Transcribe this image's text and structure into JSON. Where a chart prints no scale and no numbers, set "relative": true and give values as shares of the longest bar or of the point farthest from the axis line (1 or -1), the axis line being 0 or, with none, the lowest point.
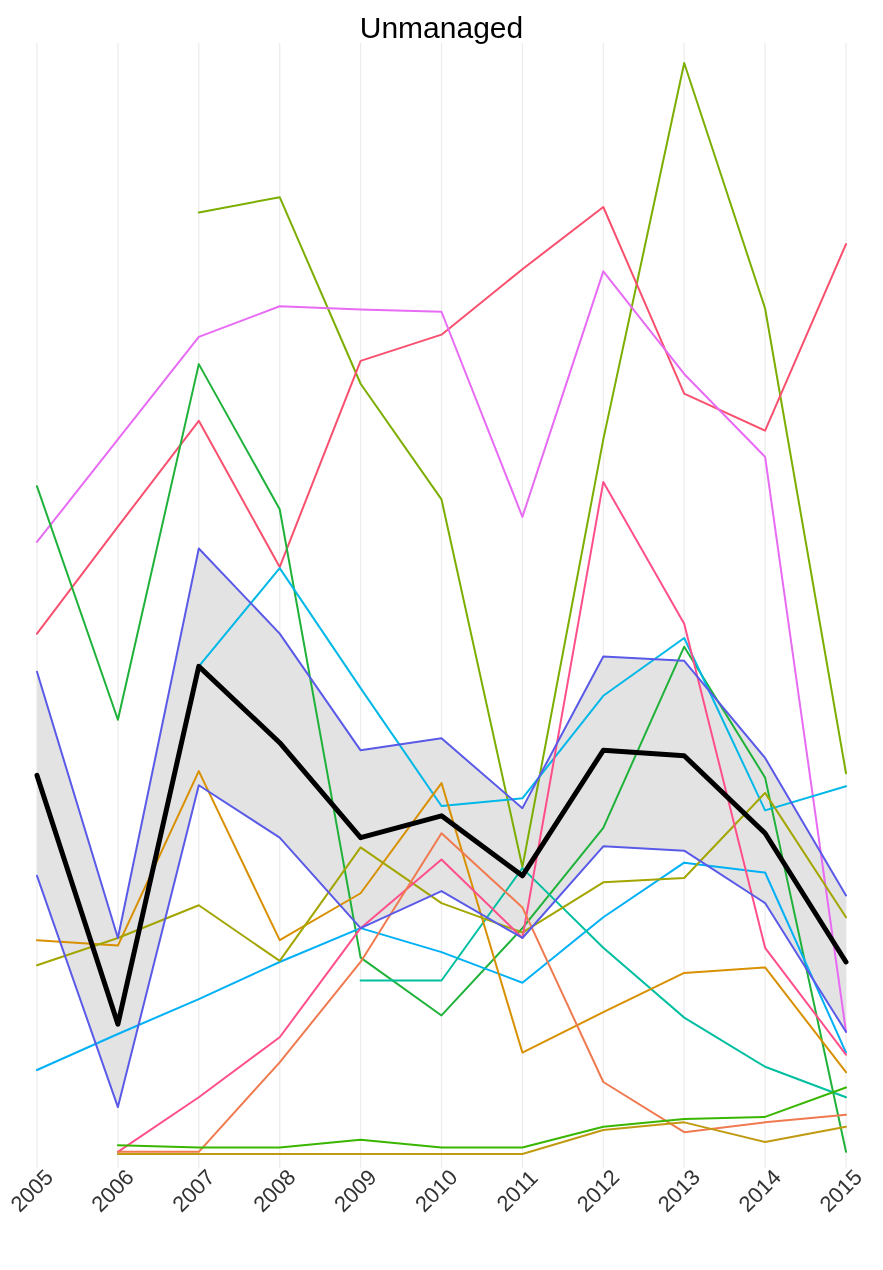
{
  "chart_data": {
    "type": "line",
    "title": "Unmanaged",
    "relative": true,
    "grid": "x",
    "categories": [
      "2005",
      "2006",
      "2007",
      "2008",
      "2009",
      "2010",
      "2011",
      "2012",
      "2013",
      "2014",
      "2015"
    ],
    "series": [
      {
        "color": "#7cae00",
        "values": [
          null,
          null,
          0.863,
          0.877,
          0.706,
          0.6,
          0.263,
          0.655,
          1.0,
          0.775,
          0.349
        ]
      },
      {
        "color": "#f8506e",
        "values": [
          0.477,
          0.575,
          0.672,
          0.538,
          0.727,
          0.751,
          0.811,
          0.868,
          0.697,
          0.663,
          0.834
        ]
      },
      {
        "color": "#e76bf3",
        "values": [
          0.561,
          0.655,
          0.749,
          0.777,
          0.774,
          0.772,
          0.584,
          0.809,
          0.715,
          0.639,
          0.112
        ]
      },
      {
        "color": "#1fb23a",
        "values": [
          0.612,
          0.398,
          0.724,
          0.591,
          0.18,
          0.127,
          0.207,
          0.299,
          0.465,
          0.345,
          0.002
        ]
      },
      {
        "color": "#00b0f6",
        "values": [
          0.077,
          0.11,
          0.142,
          0.176,
          0.207,
          0.185,
          0.157,
          0.217,
          0.267,
          0.258,
          0.093
        ]
      },
      {
        "color": "#00b8e7",
        "values": [
          null,
          null,
          0.447,
          0.537,
          0.427,
          0.319,
          0.326,
          0.42,
          0.473,
          0.315,
          0.337
        ]
      },
      {
        "color": "#00bfa0",
        "values": [
          null,
          null,
          null,
          null,
          0.159,
          0.159,
          0.262,
          0.189,
          0.125,
          0.08,
          0.052
        ]
      },
      {
        "color": "#d89000",
        "values": [
          0.196,
          0.191,
          0.351,
          0.196,
          0.239,
          0.34,
          0.093,
          0.13,
          0.166,
          0.171,
          0.075
        ]
      },
      {
        "color": "#a3a500",
        "values": [
          0.173,
          0.198,
          0.228,
          0.177,
          0.281,
          0.23,
          0.203,
          0.249,
          0.253,
          0.331,
          0.217
        ]
      },
      {
        "color": "#ff4f8b",
        "values": [
          null,
          0.002,
          0.052,
          0.107,
          0.207,
          0.27,
          0.198,
          0.616,
          0.486,
          0.189,
          0.091
        ]
      },
      {
        "color": "#f07a50",
        "values": [
          null,
          0.002,
          0.002,
          0.084,
          0.176,
          0.294,
          0.226,
          0.066,
          0.02,
          0.029,
          0.036
        ]
      },
      {
        "color": "#39b600",
        "values": [
          null,
          0.008,
          0.006,
          0.006,
          0.013,
          0.006,
          0.006,
          0.025,
          0.032,
          0.034,
          0.061
        ]
      },
      {
        "color": "#c09a10",
        "values": [
          null,
          0.0,
          0.0,
          0.0,
          0.0,
          0.0,
          0.0,
          0.022,
          0.029,
          0.011,
          0.025
        ]
      },
      {
        "color": "#5a5ae8",
        "values": [
          0.442,
          0.198,
          0.555,
          0.477,
          0.37,
          0.381,
          0.317,
          0.456,
          0.452,
          0.363,
          0.237
        ]
      },
      {
        "color": "#5a5ae8",
        "values": [
          0.255,
          0.043,
          0.338,
          0.29,
          0.207,
          0.241,
          0.198,
          0.282,
          0.278,
          0.23,
          0.112
        ]
      },
      {
        "color": "#000000",
        "values": [
          0.347,
          0.119,
          0.447,
          0.377,
          0.29,
          0.31,
          0.255,
          0.37,
          0.365,
          0.294,
          0.176
        ],
        "lower": [
          0.255,
          0.043,
          0.338,
          0.29,
          0.207,
          0.241,
          0.198,
          0.282,
          0.278,
          0.23,
          0.112
        ],
        "upper": [
          0.442,
          0.198,
          0.555,
          0.477,
          0.37,
          0.381,
          0.317,
          0.456,
          0.452,
          0.363,
          0.237
        ]
      }
    ]
  }
}
